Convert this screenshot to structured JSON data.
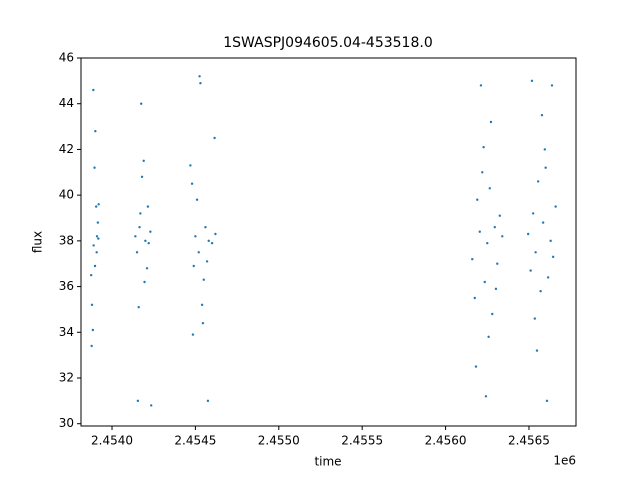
{
  "chart_data": {
    "type": "scatter",
    "title": "1SWASPJ094605.04-453518.0",
    "x_label": "time",
    "y_label": "flux",
    "x_offset_label": "1e6",
    "color": "#1f77b4",
    "grid": false,
    "xlim": [
      2453814,
      2456782
    ],
    "xticks": [
      {
        "value": 2454000,
        "label": "2.4540"
      },
      {
        "value": 2454500,
        "label": "2.4545"
      },
      {
        "value": 2455000,
        "label": "2.4550"
      },
      {
        "value": 2455500,
        "label": "2.4555"
      },
      {
        "value": 2456000,
        "label": "2.4560"
      },
      {
        "value": 2456500,
        "label": "2.4565"
      }
    ],
    "ylim": [
      29.9,
      46
    ],
    "yticks": [
      30,
      32,
      34,
      36,
      38,
      40,
      42,
      44,
      46
    ],
    "x": [
      2453875,
      2453880,
      2453885,
      2453890,
      2453895,
      2453900,
      2453905,
      2453910,
      2453915,
      2453920,
      2453878,
      2453888,
      2453898,
      2453908,
      2453918,
      2454140,
      2454150,
      2454160,
      2454170,
      2454180,
      2454190,
      2454200,
      2454210,
      2454220,
      2454230,
      2454155,
      2454175,
      2454195,
      2454215,
      2454235,
      2454165,
      2454470,
      2454480,
      2454490,
      2454500,
      2454510,
      2454520,
      2454530,
      2454540,
      2454550,
      2454560,
      2454570,
      2454580,
      2454600,
      2454620,
      2454485,
      2454525,
      2454545,
      2454575,
      2454615,
      2456160,
      2456175,
      2456190,
      2456205,
      2456220,
      2456235,
      2456250,
      2456265,
      2456280,
      2456295,
      2456310,
      2456325,
      2456340,
      2456182,
      2456212,
      2456242,
      2456272,
      2456302,
      2456228,
      2456258,
      2456495,
      2456510,
      2456525,
      2456540,
      2456555,
      2456570,
      2456585,
      2456600,
      2456615,
      2456630,
      2456645,
      2456660,
      2456518,
      2456548,
      2456578,
      2456608,
      2456638,
      2456535,
      2456595
    ],
    "values": [
      36.5,
      35.2,
      34.1,
      37.8,
      41.2,
      42.8,
      39.5,
      38.2,
      38.8,
      39.6,
      33.4,
      44.6,
      36.9,
      37.5,
      38.1,
      38.2,
      37.5,
      35.1,
      39.2,
      40.8,
      41.5,
      38.0,
      36.8,
      37.9,
      38.4,
      31.0,
      44.0,
      36.2,
      39.5,
      30.8,
      38.6,
      41.3,
      40.5,
      36.9,
      38.2,
      39.8,
      37.5,
      44.9,
      35.2,
      36.3,
      38.6,
      37.1,
      38.0,
      37.9,
      38.3,
      33.9,
      45.2,
      34.4,
      31.0,
      42.5,
      37.2,
      35.5,
      39.8,
      38.4,
      41.0,
      36.2,
      37.9,
      40.3,
      34.8,
      38.6,
      37.0,
      39.1,
      38.2,
      32.5,
      44.8,
      31.2,
      43.2,
      35.9,
      42.1,
      33.8,
      38.3,
      36.7,
      39.2,
      37.5,
      40.6,
      35.8,
      38.8,
      41.2,
      36.4,
      38.0,
      37.3,
      39.5,
      45.0,
      33.2,
      43.5,
      31.0,
      44.8,
      34.6,
      42.0
    ]
  }
}
